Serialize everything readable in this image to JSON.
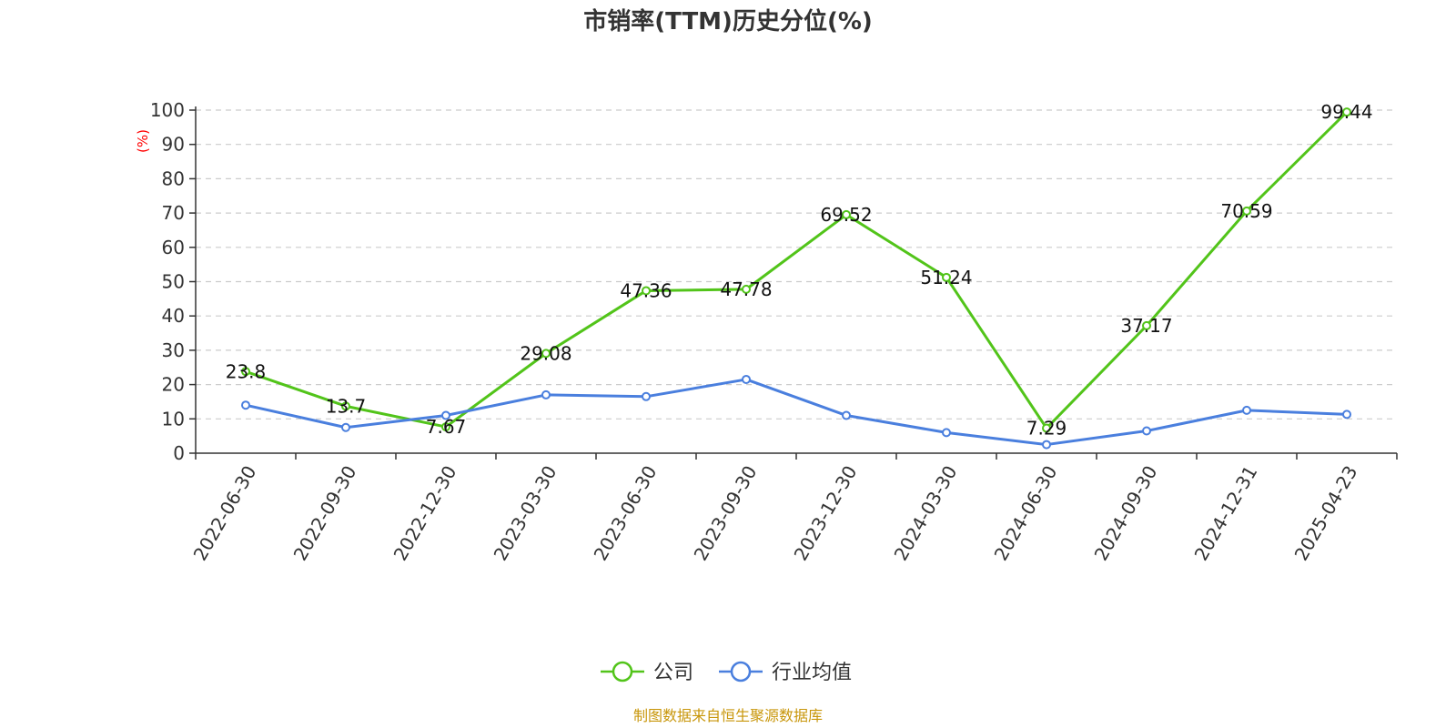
{
  "title": "市销率(TTM)历史分位(%)",
  "source_text": "制图数据来自恒生聚源数据库",
  "colors": {
    "company": "#52c41a",
    "industry": "#4a7fde",
    "unit": "#ff0000",
    "source": "#c8960a",
    "grid": "#cccccc",
    "axis": "#333333"
  },
  "chart_data": {
    "type": "line",
    "title": "市销率(TTM)历史分位(%)",
    "ylabel": "(%)",
    "xlabel": "",
    "ylim": [
      0,
      100
    ],
    "yticks": [
      0,
      10,
      20,
      30,
      40,
      50,
      60,
      70,
      80,
      90,
      100
    ],
    "grid": true,
    "legend_position": "bottom-center",
    "categories": [
      "2022-06-30",
      "2022-09-30",
      "2022-12-30",
      "2023-03-30",
      "2023-06-30",
      "2023-09-30",
      "2023-12-30",
      "2024-03-30",
      "2024-06-30",
      "2024-09-30",
      "2024-12-31",
      "2025-04-23"
    ],
    "series": [
      {
        "name": "公司",
        "color": "#52c41a",
        "values": [
          23.8,
          13.7,
          7.67,
          29.08,
          47.36,
          47.78,
          69.52,
          51.24,
          7.29,
          37.17,
          70.59,
          99.44
        ],
        "labels": [
          "23.8",
          "13.7",
          "7.67",
          "29.08",
          "47.36",
          "47.78",
          "69.52",
          "51.24",
          "7.29",
          "37.17",
          "70.59",
          "99.44"
        ]
      },
      {
        "name": "行业均值",
        "color": "#4a7fde",
        "values": [
          14.0,
          7.5,
          11.0,
          17.0,
          16.5,
          21.5,
          11.0,
          6.0,
          2.5,
          6.5,
          12.5,
          11.3
        ]
      }
    ]
  }
}
